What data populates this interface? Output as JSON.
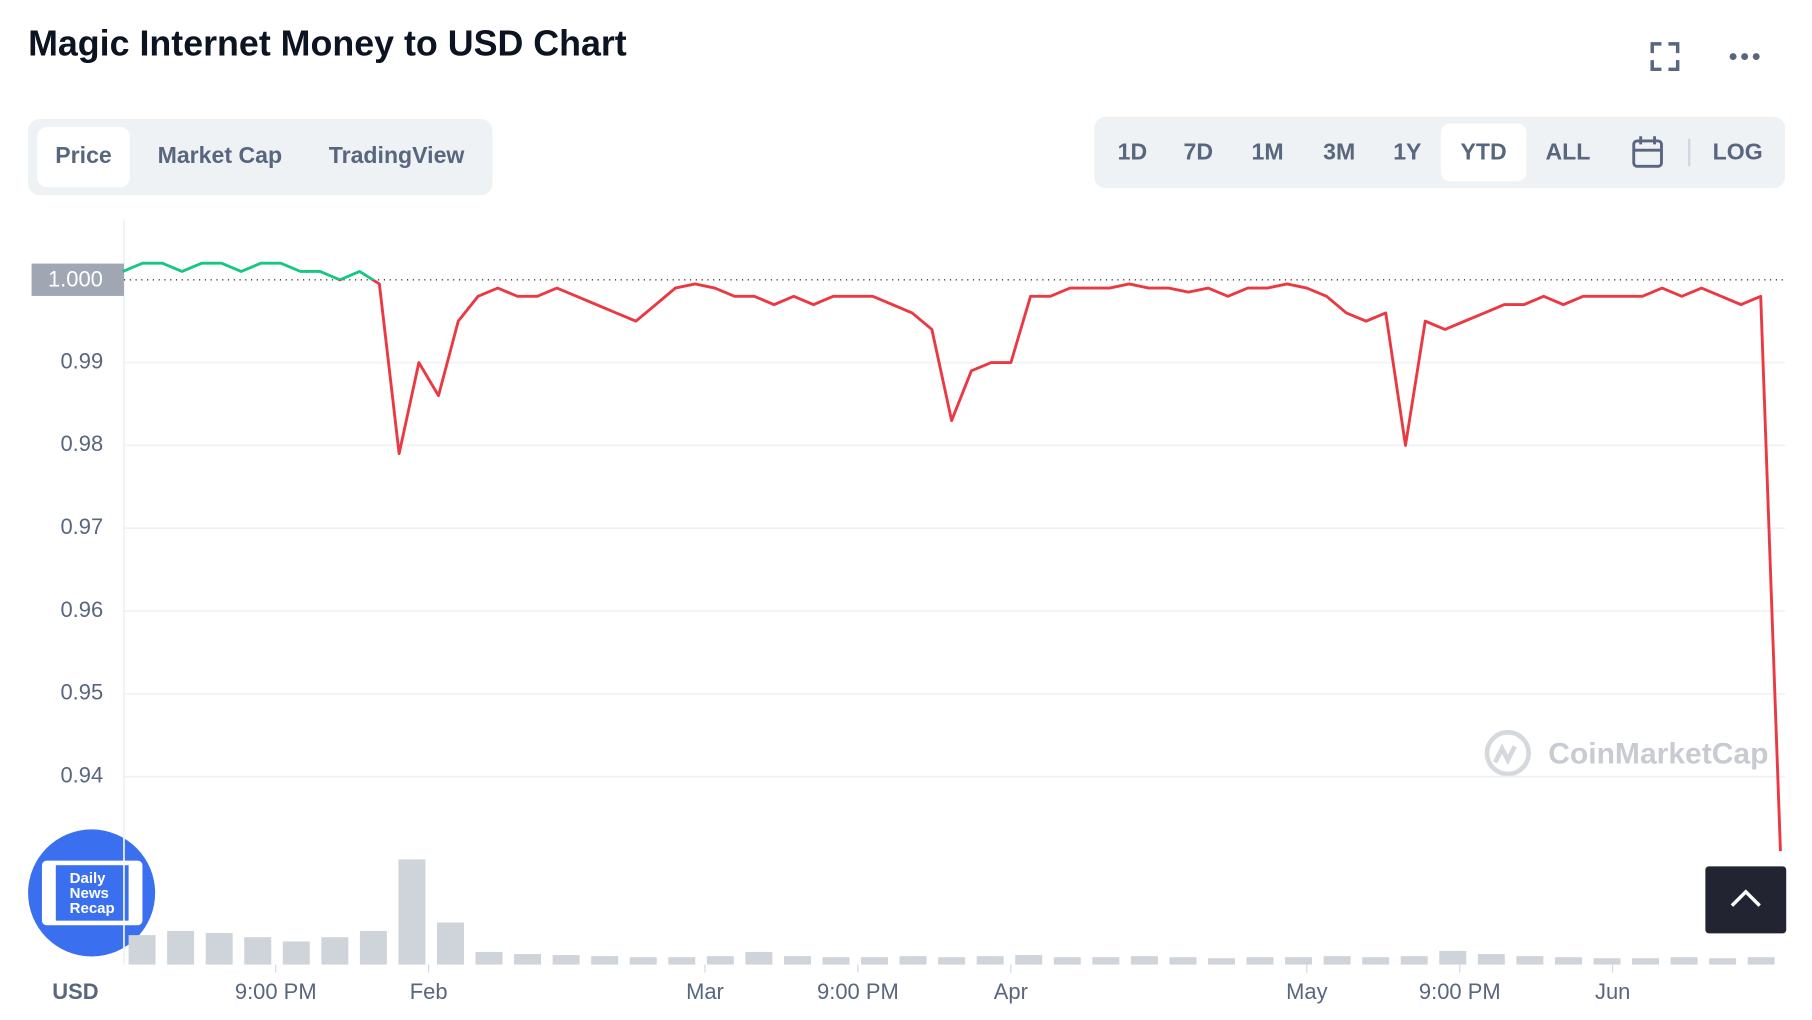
{
  "header": {
    "title": "Magic Internet Money to USD Chart"
  },
  "tabs": [
    "Price",
    "Market Cap",
    "TradingView"
  ],
  "ranges": [
    "1D",
    "7D",
    "1M",
    "3M",
    "1Y",
    "YTD",
    "ALL"
  ],
  "log_button": "LOG",
  "watermark": "CoinMarketCap",
  "badge": [
    "Daily",
    "News",
    "Recap"
  ],
  "chart_data": {
    "type": "line",
    "y_label": "USD",
    "up_color": "#16c784",
    "down_color": "#ea3943",
    "ylim": [
      0.93,
      1.007
    ],
    "yticks": [
      0.94,
      0.95,
      0.96,
      0.97,
      0.98,
      0.99
    ],
    "baseline": {
      "value": 1,
      "label": "1.000"
    },
    "grid": true,
    "xlim": [
      0,
      84
    ],
    "xticks": [
      {
        "value": 7.75,
        "label": "9:00 PM"
      },
      {
        "value": 15.5,
        "label": "Feb"
      },
      {
        "value": 29.5,
        "label": "Mar"
      },
      {
        "value": 37.25,
        "label": "9:00 PM"
      },
      {
        "value": 45,
        "label": "Apr"
      },
      {
        "value": 60,
        "label": "May"
      },
      {
        "value": 67.75,
        "label": "9:00 PM"
      },
      {
        "value": 75.5,
        "label": "Jun"
      }
    ],
    "values": [
      1.001,
      1.002,
      1.002,
      1.001,
      1.002,
      1.002,
      1.001,
      1.002,
      1.002,
      1.001,
      1.001,
      1.0,
      1.001,
      0.9995,
      0.979,
      0.99,
      0.986,
      0.995,
      0.998,
      0.999,
      0.998,
      0.998,
      0.999,
      0.998,
      0.997,
      0.996,
      0.995,
      0.997,
      0.999,
      0.9995,
      0.999,
      0.998,
      0.998,
      0.997,
      0.998,
      0.997,
      0.998,
      0.998,
      0.998,
      0.997,
      0.996,
      0.994,
      0.983,
      0.989,
      0.99,
      0.99,
      0.998,
      0.998,
      0.999,
      0.999,
      0.999,
      0.9995,
      0.999,
      0.999,
      0.9985,
      0.999,
      0.998,
      0.999,
      0.999,
      0.9995,
      0.999,
      0.998,
      0.996,
      0.995,
      0.996,
      0.98,
      0.995,
      0.994,
      0.995,
      0.996,
      0.997,
      0.997,
      0.998,
      0.997,
      0.998,
      0.998,
      0.998,
      0.998,
      0.999,
      0.998,
      0.999,
      0.998,
      0.997,
      0.998,
      0.931
    ],
    "volume": {
      "color": "#cfd3da",
      "ylim": [
        0,
        100
      ],
      "values": [
        28,
        32,
        30,
        26,
        22,
        26,
        32,
        100,
        40,
        12,
        10,
        9,
        8,
        7,
        7,
        8,
        12,
        8,
        7,
        7,
        8,
        7,
        8,
        9,
        7,
        7,
        8,
        7,
        6,
        7,
        7,
        8,
        7,
        8,
        13,
        10,
        8,
        7,
        6,
        6,
        7,
        6,
        7
      ]
    }
  }
}
